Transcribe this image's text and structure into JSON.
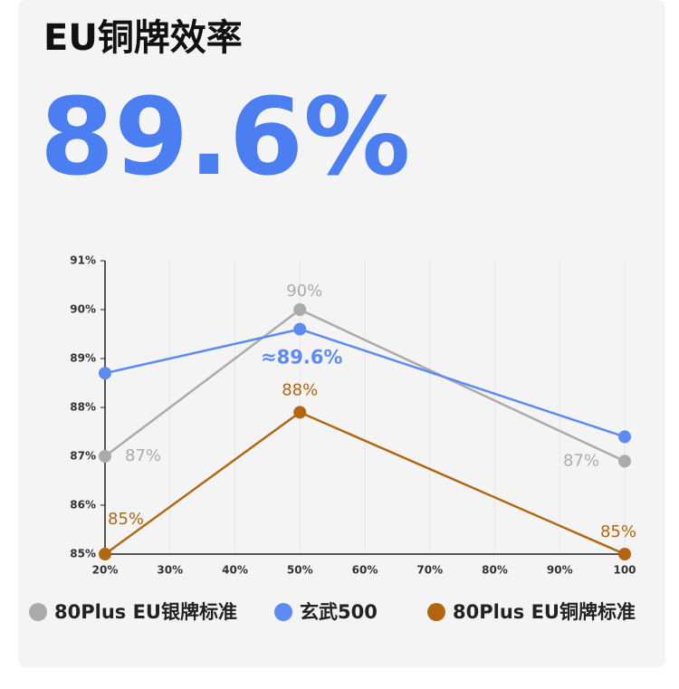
{
  "header": {
    "title": "EU铜牌效率",
    "value": "89.6%"
  },
  "chart_data": {
    "type": "line",
    "xlim": [
      20,
      100
    ],
    "xticks": [
      {
        "value": 20,
        "label": "20%"
      },
      {
        "value": 30,
        "label": "30%"
      },
      {
        "value": 40,
        "label": "40%"
      },
      {
        "value": 50,
        "label": "50%"
      },
      {
        "value": 60,
        "label": "60%"
      },
      {
        "value": 70,
        "label": "70%"
      },
      {
        "value": 80,
        "label": "80%"
      },
      {
        "value": 90,
        "label": "90%"
      },
      100
    ],
    "ylim": [
      85,
      91
    ],
    "yticks": [
      {
        "value": 85,
        "label": "85%"
      },
      {
        "value": 86,
        "label": "86%"
      },
      {
        "value": 87,
        "label": "87%"
      },
      {
        "value": 88,
        "label": "88%"
      },
      {
        "value": 89,
        "label": "89%"
      },
      {
        "value": 90,
        "label": "90%"
      },
      {
        "value": 91,
        "label": "91%"
      }
    ],
    "grid": true,
    "series": [
      {
        "name": "80Plus EU银牌标准",
        "color": "#ababab",
        "x": [
          20,
          50,
          100
        ],
        "values": [
          87,
          90,
          86.9
        ],
        "value_labels": [
          "87%",
          "90%",
          "87%"
        ]
      },
      {
        "name": "玄武500",
        "color": "#5d8bf4",
        "x": [
          20,
          50,
          100
        ],
        "values": [
          88.7,
          89.6,
          87.4
        ],
        "value_labels": [
          null,
          "≈89.6%",
          null
        ]
      },
      {
        "name": "80Plus EU铜牌标准",
        "color": "#b2660f",
        "x": [
          20,
          50,
          100
        ],
        "values": [
          85,
          87.9,
          85
        ],
        "value_labels": [
          "85%",
          "88%",
          "85%"
        ]
      }
    ]
  }
}
